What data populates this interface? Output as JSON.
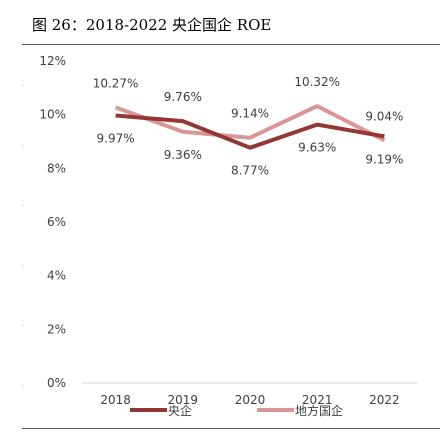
{
  "figure_title": "图 26：2018-2022 央企国企 ROE",
  "chart_data": {
    "type": "line",
    "title": "图 26：2018-2022 央企国企 ROE",
    "xlabel": "",
    "ylabel": "",
    "categories": [
      "2018",
      "2019",
      "2020",
      "2021",
      "2022"
    ],
    "ylim": [
      0,
      12
    ],
    "yticks": [
      0,
      2,
      4,
      6,
      8,
      10,
      12
    ],
    "ytick_labels": [
      "0%",
      "2%",
      "4%",
      "6%",
      "8%",
      "10%",
      "12%"
    ],
    "grid": false,
    "legend_position": "bottom-center",
    "series": [
      {
        "name": "央企",
        "values": [
          9.97,
          9.76,
          8.77,
          9.63,
          9.19
        ],
        "labels": [
          "9.97%",
          "9.76%",
          "8.77%",
          "9.63%",
          "9.19%"
        ],
        "label_positions": [
          "below",
          "above",
          "below",
          "below",
          "below"
        ],
        "color": "#943634"
      },
      {
        "name": "地方国企",
        "values": [
          10.27,
          9.36,
          9.14,
          10.32,
          9.04
        ],
        "labels": [
          "10.27%",
          "9.36%",
          "9.14%",
          "10.32%",
          "9.04%"
        ],
        "label_positions": [
          "above",
          "below",
          "above",
          "above",
          "above"
        ],
        "color": "#d99694"
      }
    ]
  }
}
